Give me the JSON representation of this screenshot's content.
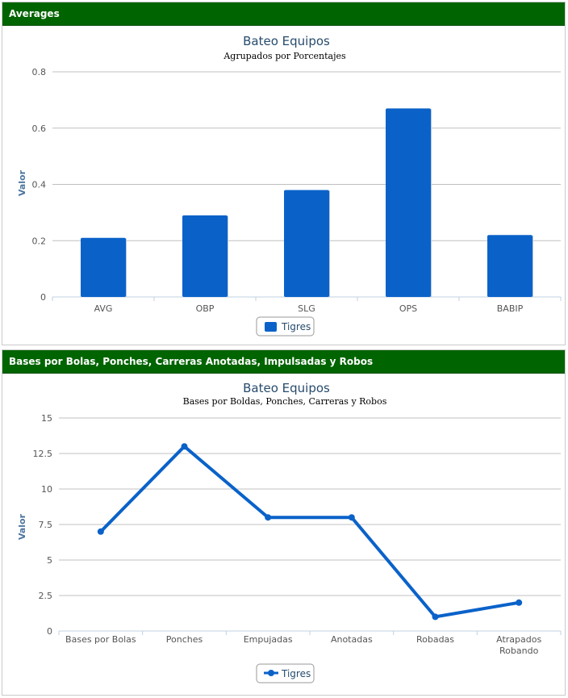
{
  "panels": [
    {
      "header": "Averages"
    },
    {
      "header": "Bases por Bolas, Ponches, Carreras Anotadas, Impulsadas y Robos"
    }
  ],
  "colors": {
    "header_bg": "#006400",
    "series": "#0a62c9",
    "title": "#274b6d",
    "axis_label": "#4d759e"
  },
  "chart_data": [
    {
      "type": "bar",
      "title": "Bateo Equipos",
      "subtitle": "Agrupados por Porcentajes",
      "xlabel": "",
      "ylabel": "Valor",
      "categories": [
        "AVG",
        "OBP",
        "SLG",
        "OPS",
        "BABIP"
      ],
      "series": [
        {
          "name": "Tigres",
          "values": [
            0.21,
            0.29,
            0.38,
            0.67,
            0.22
          ]
        }
      ],
      "ylim": [
        0,
        0.8
      ],
      "yticks": [
        "0",
        "0.2",
        "0.4",
        "0.6",
        "0.8"
      ],
      "grid": true,
      "legend_position": "bottom-center"
    },
    {
      "type": "line",
      "title": "Bateo Equipos",
      "subtitle": "Bases por Boldas, Ponches, Carreras y Robos",
      "xlabel": "",
      "ylabel": "Valor",
      "categories": [
        "Bases por Bolas",
        "Ponches",
        "Empujadas",
        "Anotadas",
        "Robadas",
        "Atrapados Robando"
      ],
      "series": [
        {
          "name": "Tigres",
          "values": [
            7,
            13,
            8,
            8,
            1,
            2
          ]
        }
      ],
      "ylim": [
        0,
        15
      ],
      "yticks": [
        "0",
        "2.5",
        "5",
        "7.5",
        "10",
        "12.5",
        "15"
      ],
      "grid": true,
      "legend_position": "bottom-center"
    }
  ]
}
